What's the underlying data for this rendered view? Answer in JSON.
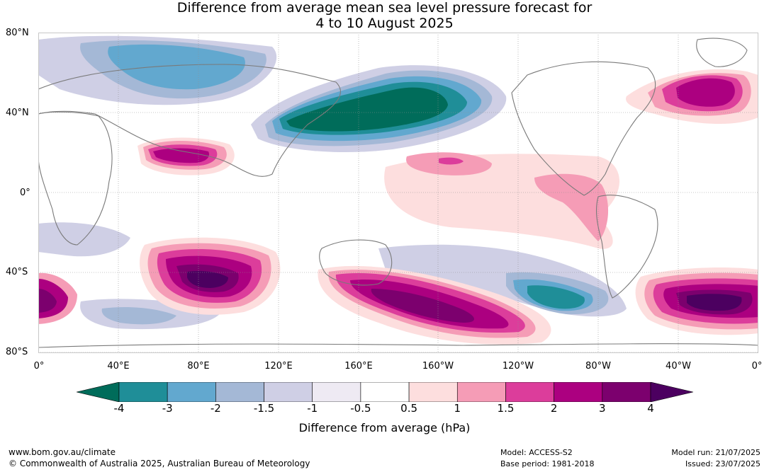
{
  "title_line1": "Difference from average mean sea level pressure forecast for",
  "title_line2": "4 to 10 August 2025",
  "lat_labels": [
    "80°N",
    "40°N",
    "0°",
    "40°S",
    "80°S"
  ],
  "lon_labels": [
    "0°",
    "40°E",
    "80°E",
    "120°E",
    "160°E",
    "160°W",
    "120°W",
    "80°W",
    "40°W",
    "0°"
  ],
  "colorbar": {
    "ticks": [
      "-4",
      "-3",
      "-2",
      "-1.5",
      "-1",
      "-0.5",
      "0.5",
      "1",
      "1.5",
      "2",
      "3",
      "4"
    ],
    "colors": [
      "#006c5a",
      "#1f8e98",
      "#62a8cf",
      "#a4b8d6",
      "#cfcfe5",
      "#eeeaf3",
      "#ffffff",
      "#fddede",
      "#f59cb6",
      "#dc3d9b",
      "#ac0080",
      "#7c006e",
      "#4c0060"
    ],
    "label": "Difference from average (hPa)"
  },
  "footer": {
    "url": "www.bom.gov.au/climate",
    "copyright": "© Commonwealth of Australia 2025, Australian Bureau of Meteorology",
    "model": "Model: ACCESS-S2",
    "base_period": "Base period: 1981-2018",
    "model_run": "Model run: 21/07/2025",
    "issued": "Issued: 23/07/2025"
  }
}
